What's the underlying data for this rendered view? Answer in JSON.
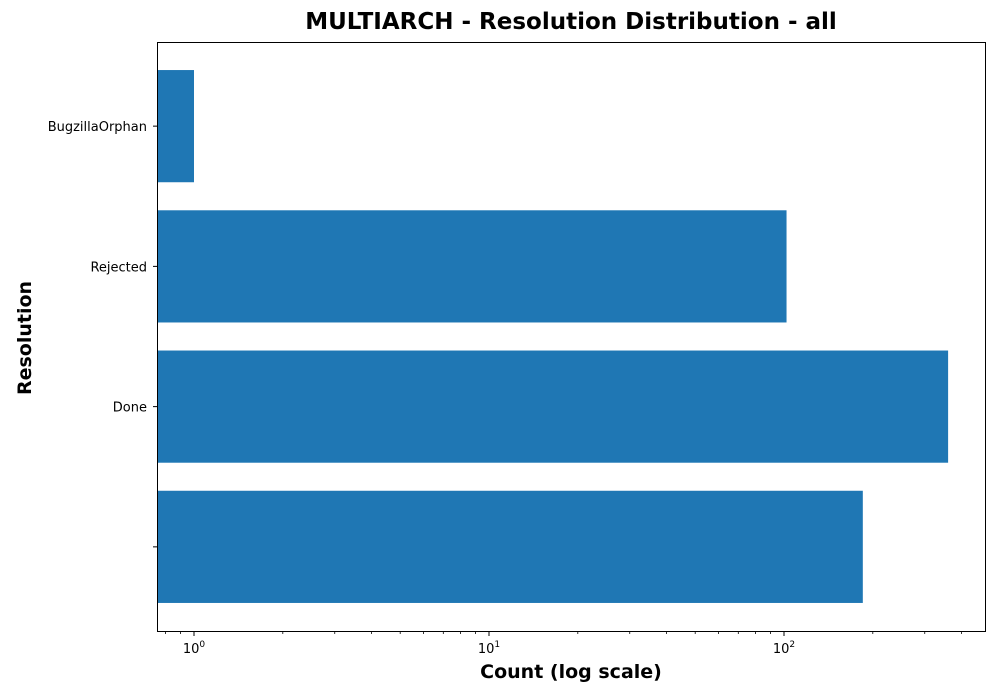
{
  "chart_data": {
    "type": "bar",
    "orientation": "horizontal",
    "title": "MULTIARCH - Resolution Distribution - all",
    "xlabel": "Count (log scale)",
    "ylabel": "Resolution",
    "x_scale": "log",
    "x_ticks": [
      {
        "value": 1,
        "base": "10",
        "exp": "0"
      },
      {
        "value": 10,
        "base": "10",
        "exp": "1"
      },
      {
        "value": 100,
        "base": "10",
        "exp": "2"
      }
    ],
    "categories": [
      "BugzillaOrphan",
      "Rejected",
      "Done",
      ""
    ],
    "values": [
      1,
      102,
      360,
      185
    ],
    "bar_color": "#1f77b4",
    "grid": false,
    "legend": "none"
  }
}
